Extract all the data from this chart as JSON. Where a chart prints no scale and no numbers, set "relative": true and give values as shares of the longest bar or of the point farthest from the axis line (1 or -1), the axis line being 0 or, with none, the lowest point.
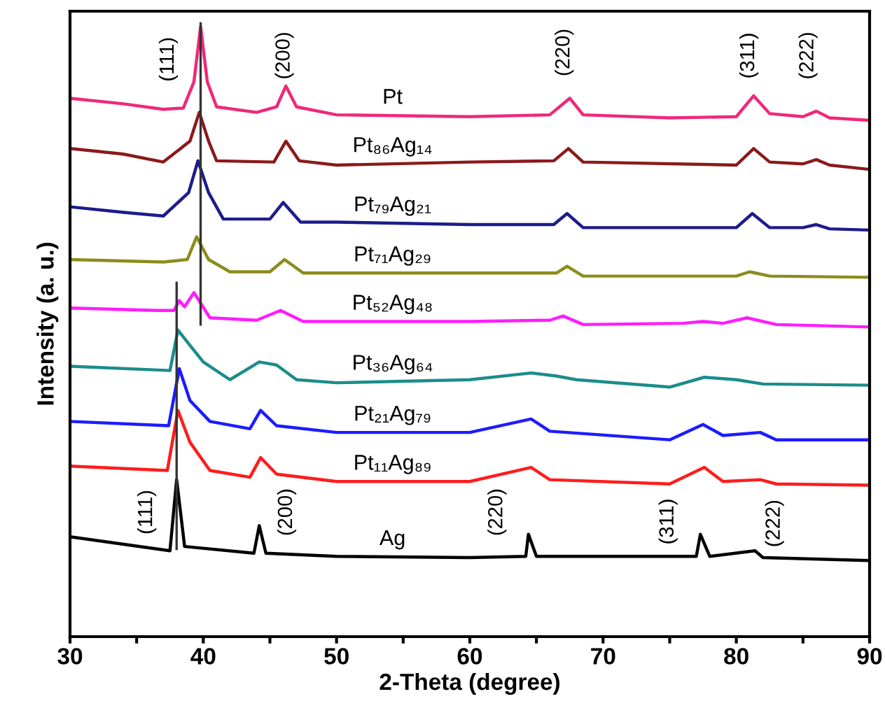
{
  "chart_data": {
    "type": "line",
    "relative": true,
    "xlabel": "2-Theta (degree)",
    "ylabel": "Intensity (a. u.)",
    "xlim": [
      30,
      90
    ],
    "xticks": [
      30,
      {
        "value": 35,
        "label": null
      },
      40,
      {
        "value": 45,
        "label": null
      },
      50,
      {
        "value": 55,
        "label": null
      },
      60,
      {
        "value": 65,
        "label": null
      },
      70,
      {
        "value": 75,
        "label": null
      },
      80,
      {
        "value": 85,
        "label": null
      },
      90
    ],
    "grid": false,
    "legend": false,
    "marker": "none",
    "line_style": "solid",
    "series": [
      {
        "name": "Pt",
        "color": "#f0287a",
        "x": [
          30,
          34,
          37,
          38.5,
          39.3,
          39.8,
          40.3,
          41,
          44,
          45.5,
          46.2,
          47,
          50,
          60,
          66,
          67.5,
          68.5,
          75,
          80,
          81.3,
          82.5,
          85,
          86,
          87,
          90
        ],
        "values": [
          0.878,
          0.869,
          0.86,
          0.862,
          0.905,
          0.995,
          0.905,
          0.864,
          0.855,
          0.864,
          0.898,
          0.864,
          0.851,
          0.848,
          0.851,
          0.878,
          0.851,
          0.846,
          0.848,
          0.882,
          0.853,
          0.848,
          0.857,
          0.846,
          0.842
        ]
      },
      {
        "name": "Pt₈₆Ag₁₄",
        "color": "#8b1a1a",
        "x": [
          30,
          34,
          37,
          39,
          39.7,
          40.4,
          41,
          45.3,
          46.2,
          47.2,
          50,
          60,
          66.3,
          67.4,
          68.5,
          80,
          81.3,
          82.5,
          85,
          86,
          87,
          90
        ],
        "values": [
          0.796,
          0.787,
          0.774,
          0.808,
          0.855,
          0.808,
          0.776,
          0.774,
          0.808,
          0.776,
          0.769,
          0.774,
          0.776,
          0.796,
          0.774,
          0.769,
          0.796,
          0.774,
          0.771,
          0.778,
          0.769,
          0.762
        ]
      },
      {
        "name": "Pt₇₉Ag₂₁",
        "color": "#1c1c8c",
        "x": [
          30,
          34,
          37,
          38.9,
          39.6,
          40.4,
          41.5,
          45,
          46,
          47.3,
          50,
          60,
          66.3,
          67.3,
          68.5,
          80,
          81.2,
          82.5,
          85,
          86,
          87,
          90
        ],
        "values": [
          0.701,
          0.692,
          0.686,
          0.724,
          0.776,
          0.724,
          0.681,
          0.681,
          0.708,
          0.676,
          0.676,
          0.672,
          0.672,
          0.69,
          0.667,
          0.667,
          0.69,
          0.667,
          0.667,
          0.672,
          0.665,
          0.663
        ]
      },
      {
        "name": "Pt₇₁Ag₂₉",
        "color": "#8c8c1c",
        "x": [
          30,
          37,
          38.8,
          39.5,
          40.4,
          42,
          45,
          46.1,
          47.5,
          50,
          60,
          66.5,
          67.3,
          68.5,
          80,
          81,
          82.5,
          90
        ],
        "values": [
          0.615,
          0.611,
          0.615,
          0.652,
          0.615,
          0.595,
          0.595,
          0.615,
          0.593,
          0.593,
          0.593,
          0.593,
          0.604,
          0.588,
          0.588,
          0.595,
          0.588,
          0.586
        ]
      },
      {
        "name": "Pt₅₂Ag₄₈",
        "color": "#ff1cff",
        "x": [
          30,
          36.5,
          37.8,
          38.2,
          38.6,
          39.3,
          40.5,
          44,
          45.8,
          47.5,
          60,
          66,
          67,
          68.5,
          76,
          77.5,
          79,
          80.8,
          83,
          90
        ],
        "values": [
          0.536,
          0.532,
          0.532,
          0.548,
          0.538,
          0.561,
          0.52,
          0.516,
          0.532,
          0.514,
          0.514,
          0.516,
          0.523,
          0.509,
          0.511,
          0.514,
          0.511,
          0.52,
          0.509,
          0.505
        ]
      },
      {
        "name": "Pt₃₆Ag₆₄",
        "color": "#1c8c8c",
        "x": [
          30,
          37.5,
          38.1,
          39,
          40,
          42,
          44.2,
          45.5,
          47,
          50,
          60,
          64.6,
          66.5,
          68,
          75,
          77.6,
          80,
          82,
          90
        ],
        "values": [
          0.441,
          0.434,
          0.5,
          0.475,
          0.448,
          0.419,
          0.448,
          0.443,
          0.419,
          0.414,
          0.419,
          0.43,
          0.425,
          0.419,
          0.407,
          0.423,
          0.419,
          0.412,
          0.41
        ]
      },
      {
        "name": "Pt₂₁Ag₇₉",
        "color": "#1c1cff",
        "x": [
          30,
          37.4,
          38.2,
          39,
          40.5,
          43.5,
          44.3,
          45.5,
          50,
          60,
          64.6,
          66,
          75,
          77.5,
          79,
          81.8,
          83,
          90
        ],
        "values": [
          0.351,
          0.344,
          0.437,
          0.385,
          0.351,
          0.339,
          0.369,
          0.344,
          0.333,
          0.333,
          0.355,
          0.335,
          0.321,
          0.346,
          0.328,
          0.333,
          0.321,
          0.321
        ]
      },
      {
        "name": "Pt₁₁Ag₈₉",
        "color": "#ff1c1c",
        "x": [
          30,
          37.3,
          38.1,
          39,
          40.5,
          43.5,
          44.3,
          45.5,
          50,
          60,
          64.6,
          66,
          75,
          77.6,
          79,
          81.8,
          83,
          90
        ],
        "values": [
          0.278,
          0.271,
          0.369,
          0.317,
          0.271,
          0.26,
          0.292,
          0.265,
          0.253,
          0.253,
          0.276,
          0.256,
          0.249,
          0.276,
          0.253,
          0.256,
          0.249,
          0.247
        ]
      },
      {
        "name": "Ag",
        "color": "#000000",
        "x": [
          30,
          37.5,
          38,
          38.6,
          43.8,
          44.2,
          44.7,
          50,
          60,
          64.2,
          64.4,
          65,
          77,
          77.3,
          78,
          81.4,
          82,
          90
        ],
        "values": [
          0.163,
          0.14,
          0.256,
          0.147,
          0.136,
          0.181,
          0.136,
          0.131,
          0.129,
          0.131,
          0.167,
          0.131,
          0.131,
          0.167,
          0.131,
          0.14,
          0.129,
          0.124
        ]
      },
      {
        "color": "#333333",
        "x": [
          39.8,
          39.8
        ],
        "values": [
          1.0,
          0.509
        ]
      },
      {
        "color": "#333333",
        "x": [
          38.0,
          38.0
        ],
        "values": [
          0.577,
          0.143
        ]
      }
    ],
    "annotations": [
      "(111)",
      "(200)",
      "(220)",
      "(311)",
      "(222)",
      "(111)",
      "(200)",
      "(220)",
      "(311)",
      "(222)"
    ]
  }
}
